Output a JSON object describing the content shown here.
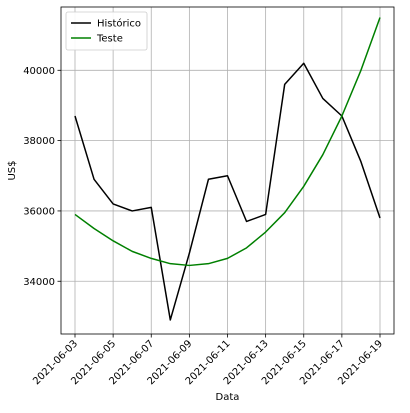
{
  "chart_data": {
    "type": "line",
    "xlabel": "Data",
    "ylabel": "US$",
    "x": [
      "2021-06-03",
      "2021-06-04",
      "2021-06-05",
      "2021-06-06",
      "2021-06-07",
      "2021-06-08",
      "2021-06-09",
      "2021-06-10",
      "2021-06-11",
      "2021-06-12",
      "2021-06-13",
      "2021-06-14",
      "2021-06-15",
      "2021-06-16",
      "2021-06-17",
      "2021-06-18",
      "2021-06-19"
    ],
    "xticks": [
      "2021-06-03",
      "2021-06-05",
      "2021-06-07",
      "2021-06-09",
      "2021-06-11",
      "2021-06-13",
      "2021-06-15",
      "2021-06-17",
      "2021-06-19"
    ],
    "yticks": [
      34000,
      36000,
      38000,
      40000
    ],
    "ylim": [
      32500,
      41800
    ],
    "grid": true,
    "legend_position": "top-left",
    "series": [
      {
        "name": "Histórico",
        "color": "#000000",
        "values": [
          38700,
          36900,
          36200,
          36000,
          36100,
          32900,
          34800,
          36900,
          37000,
          35700,
          35900,
          39600,
          40200,
          39200,
          38700,
          37400,
          35800
        ]
      },
      {
        "name": "Teste",
        "color": "#008000",
        "values": [
          35900,
          35500,
          35150,
          34850,
          34650,
          34500,
          34450,
          34500,
          34650,
          34950,
          35400,
          35950,
          36700,
          37600,
          38700,
          40000,
          41500
        ]
      }
    ]
  }
}
